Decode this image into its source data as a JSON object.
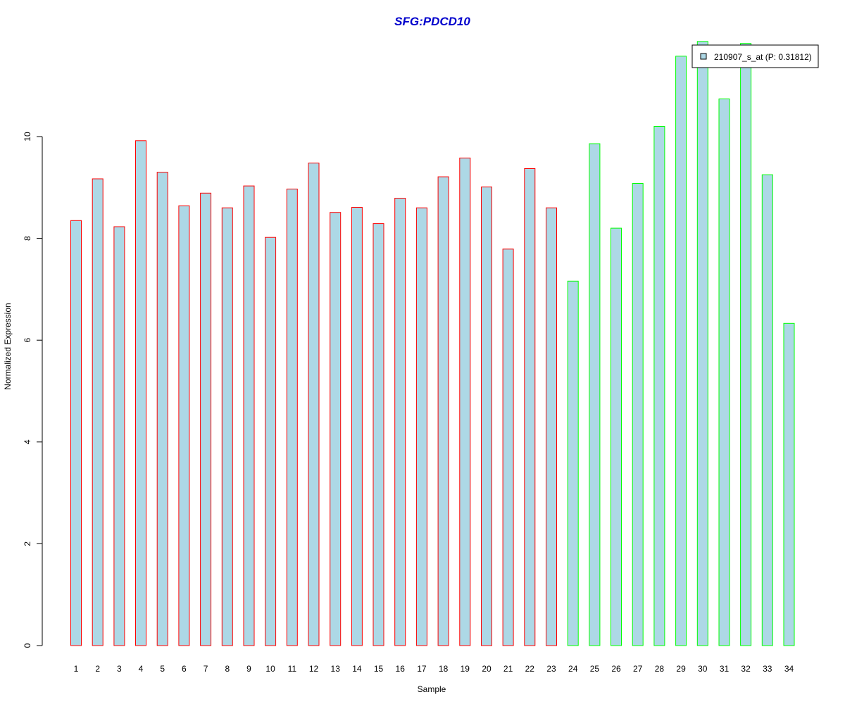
{
  "chart_data": {
    "type": "bar",
    "title": "SFG:PDCD10",
    "xlabel": "Sample",
    "ylabel": "Normalized Expression",
    "categories": [
      "1",
      "2",
      "3",
      "4",
      "5",
      "6",
      "7",
      "8",
      "9",
      "10",
      "11",
      "12",
      "13",
      "14",
      "15",
      "16",
      "17",
      "18",
      "19",
      "20",
      "21",
      "22",
      "23",
      "24",
      "25",
      "26",
      "27",
      "28",
      "29",
      "30",
      "31",
      "32",
      "33",
      "34"
    ],
    "values": [
      8.35,
      9.17,
      8.23,
      9.92,
      9.3,
      8.64,
      8.89,
      8.6,
      9.03,
      8.02,
      8.97,
      9.48,
      8.51,
      8.61,
      8.29,
      8.79,
      8.6,
      9.21,
      9.58,
      9.01,
      7.79,
      9.37,
      8.6,
      7.16,
      9.86,
      8.2,
      9.08,
      10.2,
      11.58,
      11.87,
      10.74,
      11.83,
      9.25,
      6.33
    ],
    "groups": [
      1,
      1,
      1,
      1,
      1,
      1,
      1,
      1,
      1,
      1,
      1,
      1,
      1,
      1,
      1,
      1,
      1,
      1,
      1,
      1,
      1,
      1,
      1,
      2,
      2,
      2,
      2,
      2,
      2,
      2,
      2,
      2,
      2,
      2
    ],
    "ylim": [
      0,
      12
    ],
    "yticks": [
      "0",
      "2",
      "4",
      "6",
      "8",
      "10"
    ],
    "legend": {
      "label": "210907_s_at (P: 0.31812)",
      "position": "top-right"
    },
    "grid": false
  },
  "colors": {
    "bar_fill": "#ADD8E6",
    "group1_border": "#FF0000",
    "group2_border": "#00FF00",
    "title": "#0000CC",
    "axis": "#000000"
  }
}
